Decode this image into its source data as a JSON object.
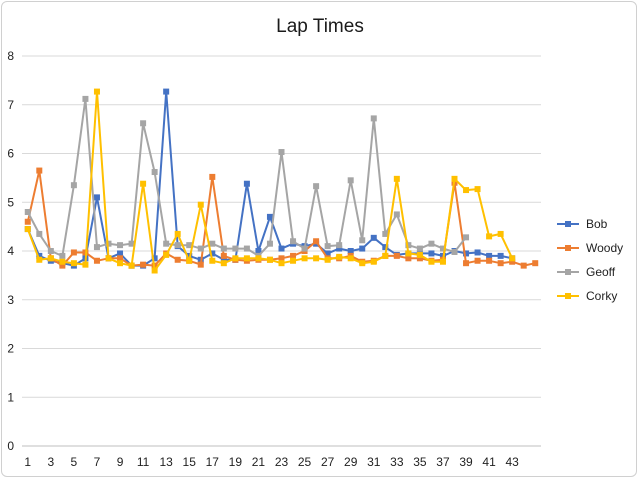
{
  "chart_data": {
    "type": "line",
    "title": "Lap Times",
    "xlabel": "",
    "ylabel": "",
    "ylim": [
      0,
      8
    ],
    "yticks": [
      "0",
      "1",
      "2",
      "3",
      "4",
      "5",
      "6",
      "7",
      "8"
    ],
    "xticks": [
      "1",
      "3",
      "5",
      "7",
      "9",
      "11",
      "13",
      "15",
      "17",
      "19",
      "21",
      "23",
      "25",
      "27",
      "29",
      "31",
      "33",
      "35",
      "37",
      "39",
      "41",
      "43"
    ],
    "x_count": 45,
    "grid": true,
    "legend_position": "right",
    "series": [
      {
        "name": "Bob",
        "color": "#4472c4",
        "values": [
          4.45,
          3.9,
          3.8,
          3.75,
          3.7,
          3.85,
          5.1,
          3.85,
          3.95,
          3.7,
          3.7,
          3.85,
          7.27,
          4.1,
          3.9,
          3.82,
          3.95,
          3.82,
          3.82,
          5.38,
          4.0,
          4.7,
          4.05,
          4.15,
          4.1,
          4.15,
          3.95,
          4.05,
          4.0,
          4.05,
          4.27,
          4.08,
          3.92,
          3.95,
          3.95,
          3.95,
          3.9,
          4.0,
          3.95,
          3.97,
          3.9,
          3.9,
          3.85
        ]
      },
      {
        "name": "Woody",
        "color": "#ed7d31",
        "values": [
          4.6,
          5.65,
          3.85,
          3.7,
          3.97,
          3.97,
          3.8,
          3.85,
          3.85,
          3.7,
          3.72,
          3.7,
          3.95,
          3.82,
          3.8,
          3.72,
          5.52,
          3.9,
          3.82,
          3.8,
          3.82,
          3.82,
          3.85,
          3.9,
          4.0,
          4.2,
          3.85,
          3.85,
          3.9,
          3.78,
          3.8,
          3.9,
          3.9,
          3.85,
          3.85,
          3.8,
          3.82,
          5.4,
          3.75,
          3.8,
          3.8,
          3.75,
          3.78,
          3.7,
          3.75
        ]
      },
      {
        "name": "Geoff",
        "color": "#a5a5a5",
        "values": [
          4.8,
          4.35,
          4.0,
          3.9,
          5.35,
          7.12,
          4.08,
          4.15,
          4.12,
          4.15,
          6.62,
          5.62,
          4.15,
          4.12,
          4.12,
          4.05,
          4.15,
          4.05,
          4.05,
          4.05,
          3.9,
          4.15,
          6.03,
          4.2,
          4.05,
          5.33,
          4.1,
          4.12,
          5.45,
          4.22,
          6.72,
          4.35,
          4.75,
          4.12,
          4.05,
          4.15,
          4.05,
          3.98,
          4.28
        ]
      },
      {
        "name": "Corky",
        "color": "#ffc000",
        "values": [
          4.45,
          3.82,
          3.85,
          3.78,
          3.75,
          3.72,
          7.27,
          3.85,
          3.75,
          3.7,
          5.38,
          3.6,
          3.92,
          4.35,
          3.8,
          4.95,
          3.8,
          3.75,
          3.85,
          3.85,
          3.85,
          3.82,
          3.75,
          3.8,
          3.85,
          3.85,
          3.82,
          3.88,
          3.85,
          3.75,
          3.78,
          3.9,
          5.48,
          3.95,
          3.92,
          3.78,
          3.78,
          5.48,
          5.25,
          5.27,
          4.3,
          4.35,
          3.85
        ]
      }
    ]
  }
}
